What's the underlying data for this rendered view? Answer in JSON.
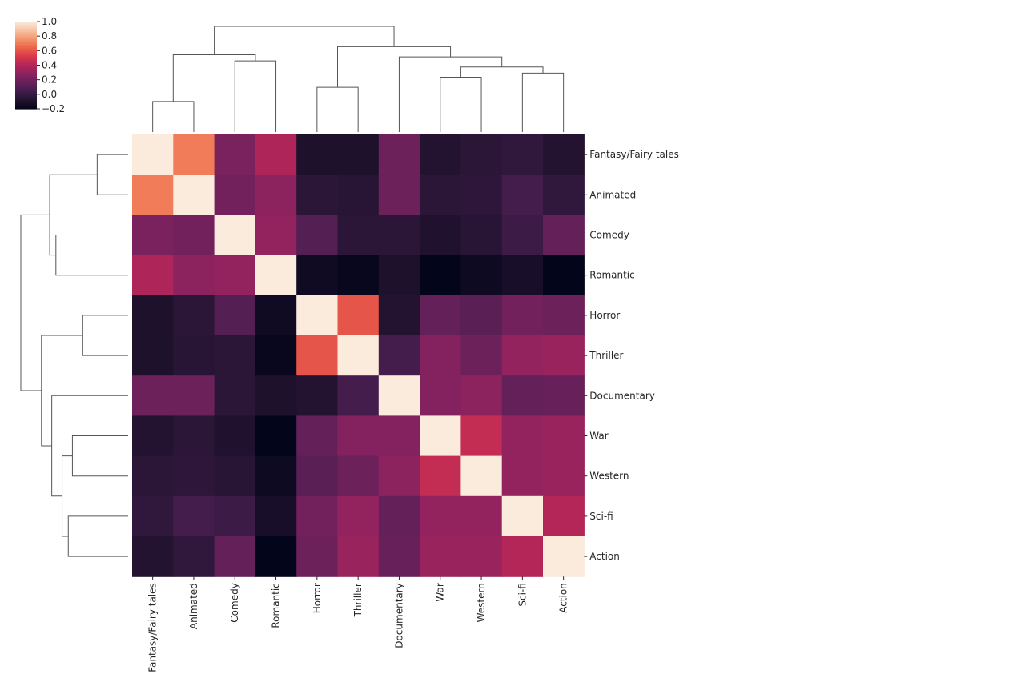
{
  "chart_data": {
    "type": "heatmap",
    "title": "",
    "variant": "clustermap",
    "row_labels": [
      "Fantasy/Fairy tales",
      "Animated",
      "Comedy",
      "Romantic",
      "Horror",
      "Thriller",
      "Documentary",
      "War",
      "Western",
      "Sci-fi",
      "Action"
    ],
    "col_labels": [
      "Fantasy/Fairy tales",
      "Animated",
      "Comedy",
      "Romantic",
      "Horror",
      "Thriller",
      "Documentary",
      "War",
      "Western",
      "Sci-fi",
      "Action"
    ],
    "values": [
      [
        1.0,
        0.7,
        0.22,
        0.38,
        -0.1,
        -0.1,
        0.18,
        -0.08,
        -0.05,
        -0.03,
        -0.08
      ],
      [
        0.7,
        1.0,
        0.2,
        0.28,
        -0.05,
        -0.06,
        0.18,
        -0.05,
        -0.04,
        0.05,
        -0.03
      ],
      [
        0.22,
        0.2,
        1.0,
        0.3,
        0.1,
        -0.05,
        -0.05,
        -0.09,
        -0.06,
        0.02,
        0.15
      ],
      [
        0.38,
        0.28,
        0.3,
        1.0,
        -0.15,
        -0.18,
        -0.1,
        -0.2,
        -0.16,
        -0.12,
        -0.2
      ],
      [
        -0.1,
        -0.05,
        0.1,
        -0.15,
        1.0,
        0.6,
        -0.08,
        0.15,
        0.12,
        0.2,
        0.18
      ],
      [
        -0.1,
        -0.06,
        -0.05,
        -0.18,
        0.6,
        1.0,
        0.05,
        0.25,
        0.18,
        0.3,
        0.32
      ],
      [
        0.18,
        0.18,
        -0.05,
        -0.1,
        -0.08,
        0.05,
        1.0,
        0.25,
        0.28,
        0.15,
        0.16
      ],
      [
        -0.08,
        -0.05,
        -0.09,
        -0.2,
        0.15,
        0.25,
        0.25,
        1.0,
        0.45,
        0.3,
        0.32
      ],
      [
        -0.05,
        -0.04,
        -0.06,
        -0.16,
        0.12,
        0.18,
        0.28,
        0.45,
        1.0,
        0.3,
        0.32
      ],
      [
        -0.03,
        0.05,
        0.02,
        -0.12,
        0.2,
        0.3,
        0.15,
        0.3,
        0.3,
        1.0,
        0.4
      ],
      [
        -0.08,
        -0.03,
        0.15,
        -0.2,
        0.18,
        0.32,
        0.16,
        0.32,
        0.32,
        0.4,
        1.0
      ]
    ],
    "vmin": -0.2,
    "vmax": 1.0,
    "colormap": "rocket",
    "colorbar_ticks": [
      "1.0",
      "0.8",
      "0.6",
      "0.4",
      "0.2",
      "0.0",
      "−0.2"
    ],
    "colorbar_tick_values": [
      1.0,
      0.8,
      0.6,
      0.4,
      0.2,
      0.0,
      -0.2
    ],
    "colorbar_placement": "top-left",
    "xlabel": "",
    "ylabel": "",
    "dendrogram": {
      "col_merges": [
        {
          "left": [
            0
          ],
          "right": [
            1
          ],
          "height": 0.15
        },
        {
          "left": [
            2
          ],
          "right": [
            3
          ],
          "height": 0.35
        },
        {
          "left": [
            0,
            1
          ],
          "right": [
            2,
            3
          ],
          "height": 0.38
        },
        {
          "left": [
            4
          ],
          "right": [
            5
          ],
          "height": 0.22
        },
        {
          "left": [
            7
          ],
          "right": [
            8
          ],
          "height": 0.27
        },
        {
          "left": [
            9
          ],
          "right": [
            10
          ],
          "height": 0.29
        },
        {
          "left": [
            7,
            8
          ],
          "right": [
            9,
            10
          ],
          "height": 0.32
        },
        {
          "left": [
            6
          ],
          "right": [
            7,
            8,
            9,
            10
          ],
          "height": 0.37
        },
        {
          "left": [
            4,
            5
          ],
          "right": [
            6,
            7,
            8,
            9,
            10
          ],
          "height": 0.42
        },
        {
          "left": [
            0,
            1,
            2,
            3
          ],
          "right": [
            4,
            5,
            6,
            7,
            8,
            9,
            10
          ],
          "height": 0.52
        }
      ],
      "row_merges": [
        {
          "left": [
            0
          ],
          "right": [
            1
          ],
          "height": 0.15
        },
        {
          "left": [
            2
          ],
          "right": [
            3
          ],
          "height": 0.35
        },
        {
          "left": [
            0,
            1
          ],
          "right": [
            2,
            3
          ],
          "height": 0.38
        },
        {
          "left": [
            4
          ],
          "right": [
            5
          ],
          "height": 0.22
        },
        {
          "left": [
            7
          ],
          "right": [
            8
          ],
          "height": 0.27
        },
        {
          "left": [
            9
          ],
          "right": [
            10
          ],
          "height": 0.29
        },
        {
          "left": [
            7,
            8
          ],
          "right": [
            9,
            10
          ],
          "height": 0.32
        },
        {
          "left": [
            6
          ],
          "right": [
            7,
            8,
            9,
            10
          ],
          "height": 0.37
        },
        {
          "left": [
            4,
            5
          ],
          "right": [
            6,
            7,
            8,
            9,
            10
          ],
          "height": 0.42
        },
        {
          "left": [
            0,
            1,
            2,
            3
          ],
          "right": [
            4,
            5,
            6,
            7,
            8,
            9,
            10
          ],
          "height": 0.52
        }
      ]
    }
  }
}
